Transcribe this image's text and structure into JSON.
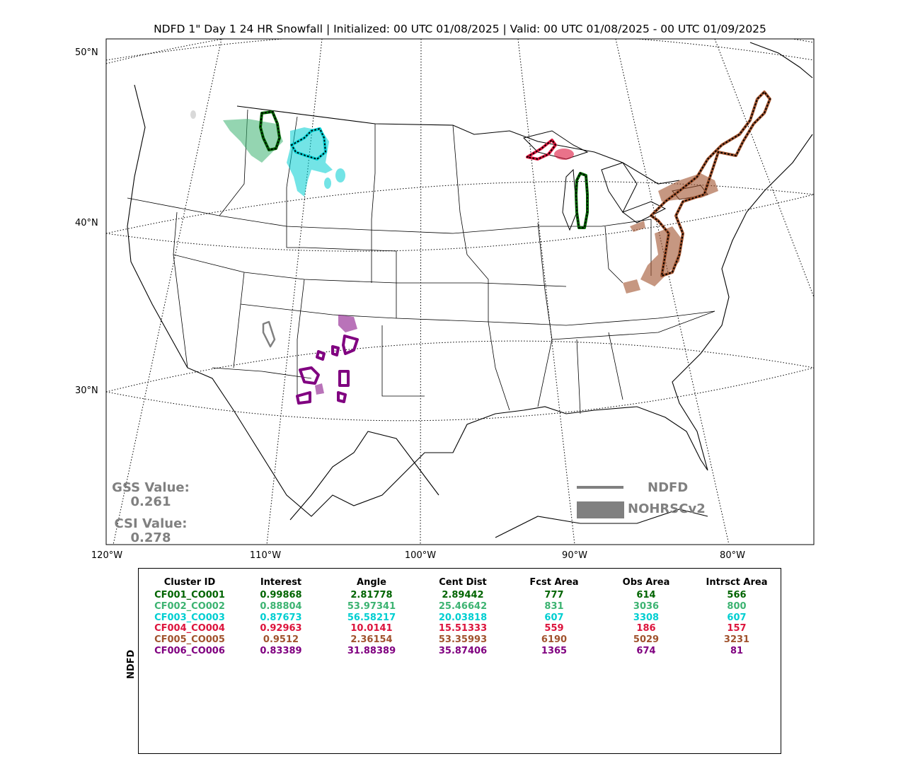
{
  "title": "NDFD 1\" Day 1 24 HR Snowfall | Initialized: 00 UTC 01/08/2025 | Valid: 00 UTC 01/08/2025 - 00 UTC 01/09/2025",
  "map": {
    "lat_labels": [
      "50°N",
      "40°N",
      "30°N"
    ],
    "lon_labels": [
      "120°W",
      "110°W",
      "100°W",
      "90°W",
      "80°W"
    ]
  },
  "stats": {
    "gss_label": "GSS Value:",
    "gss_value": "0.261",
    "csi_label": "CSI Value:",
    "csi_value": "0.278"
  },
  "legend": {
    "forecast_label": "NDFD",
    "observed_label": "NOHRSCv2",
    "color": "#808080"
  },
  "table": {
    "row_axis_label": "NDFD",
    "columns": [
      "Cluster ID",
      "Interest",
      "Angle",
      "Cent Dist",
      "Fcst Area",
      "Obs Area",
      "Intrsct Area"
    ],
    "rows": [
      {
        "color": "#006400",
        "cells": [
          "CF001_CO001",
          "0.99868",
          "2.81778",
          "2.89442",
          "777",
          "614",
          "566"
        ]
      },
      {
        "color": "#3cb371",
        "cells": [
          "CF002_CO002",
          "0.88804",
          "53.97341",
          "25.46642",
          "831",
          "3036",
          "800"
        ]
      },
      {
        "color": "#00ced1",
        "cells": [
          "CF003_CO003",
          "0.87673",
          "56.58217",
          "20.03818",
          "607",
          "3308",
          "607"
        ]
      },
      {
        "color": "#dc143c",
        "cells": [
          "CF004_CO004",
          "0.92963",
          "10.0141",
          "15.51333",
          "559",
          "186",
          "157"
        ]
      },
      {
        "color": "#a0522d",
        "cells": [
          "CF005_CO005",
          "0.9512",
          "2.36154",
          "53.35993",
          "6190",
          "5029",
          "3231"
        ]
      },
      {
        "color": "#800080",
        "cells": [
          "CF006_CO006",
          "0.83389",
          "31.88389",
          "35.87406",
          "1365",
          "674",
          "81"
        ]
      }
    ]
  }
}
